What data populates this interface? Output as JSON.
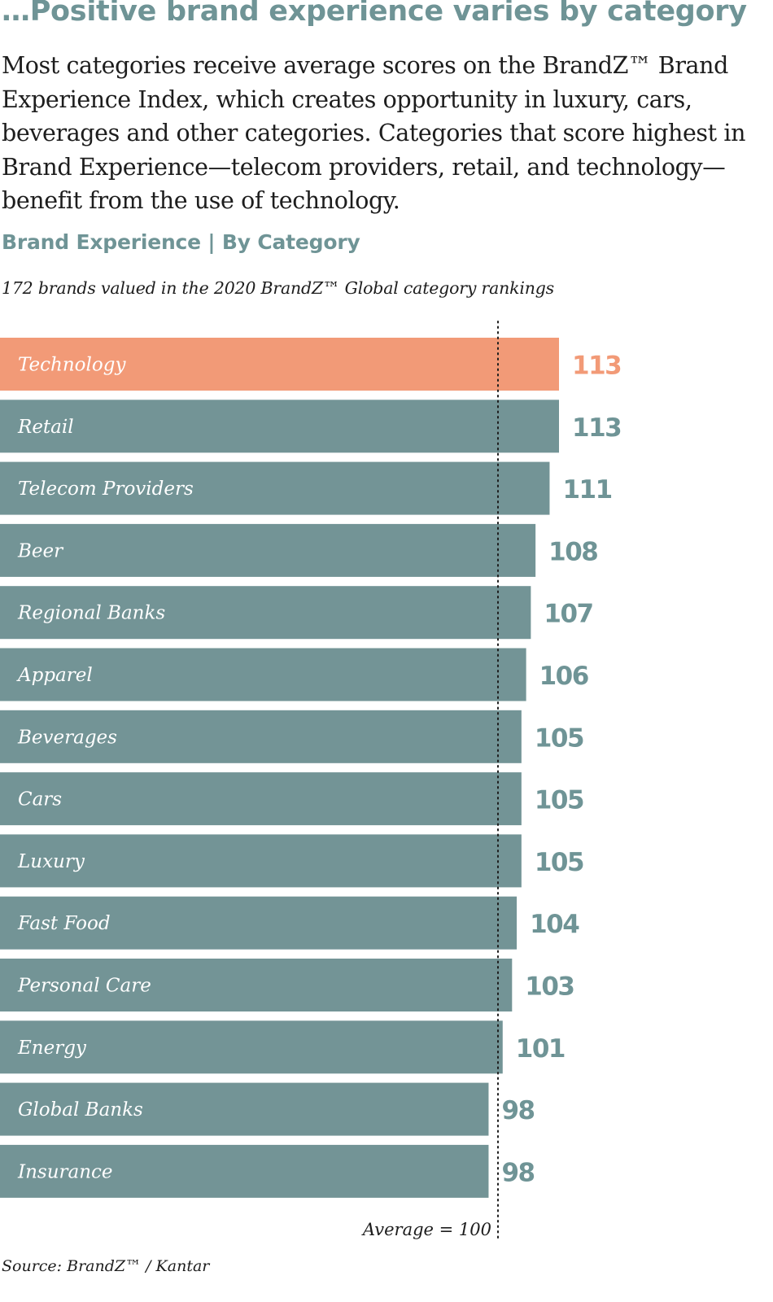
{
  "headline": "…Positive brand experience varies by category",
  "intro": "Most categories receive average scores on the BrandZ™ Brand Experience Index, which creates opportunity in luxury, cars, beverages and other categories. Categories that score highest in Brand Experience—telecom providers, retail, and technology—benefit from the use of technology.",
  "source": "Source: BrandZ™ / Kantar",
  "colors": {
    "bar": "#739496",
    "highlight": "#f29a77",
    "value_text": "#6f9496",
    "highlight_text": "#f29a77"
  },
  "chart_data": {
    "type": "bar",
    "orientation": "horizontal",
    "title": "Brand Experience | By Category",
    "subtitle": "172 brands valued in the 2020 BrandZ™ Global category rankings",
    "categories": [
      "Technology",
      "Retail",
      "Telecom Providers",
      "Beer",
      "Regional Banks",
      "Apparel",
      "Beverages",
      "Cars",
      "Luxury",
      "Fast Food",
      "Personal Care",
      "Energy",
      "Global Banks",
      "Insurance"
    ],
    "values": [
      113,
      113,
      111,
      108,
      107,
      106,
      105,
      105,
      105,
      104,
      103,
      101,
      98,
      98
    ],
    "highlighted": [
      "Technology"
    ],
    "reference_line": {
      "value": 100,
      "label": "Average = 100",
      "style": "dotted"
    },
    "grid": false,
    "legend": "none"
  }
}
